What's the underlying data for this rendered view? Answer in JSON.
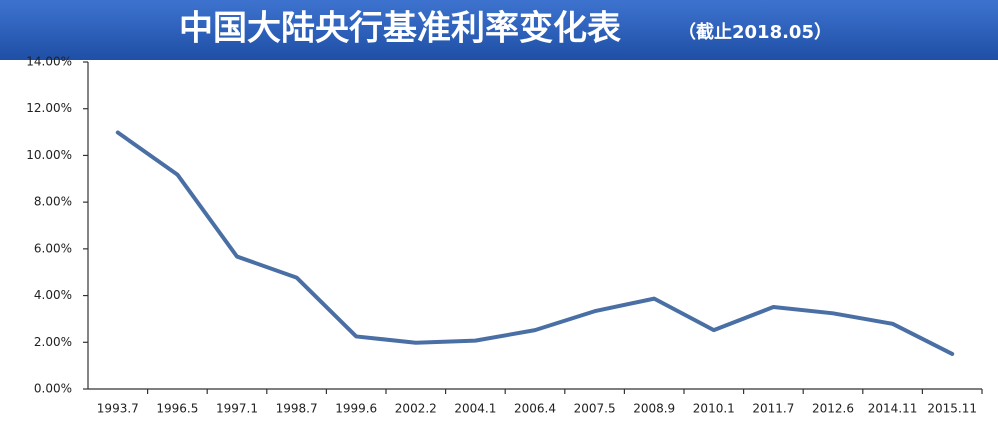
{
  "chart_data": {
    "type": "line",
    "title": "中国大陆央行基准利率变化表",
    "subtitle": "（截止2018.05）",
    "categories": [
      "1993.7",
      "1996.5",
      "1997.1",
      "1998.7",
      "1999.6",
      "2002.2",
      "2004.1",
      "2006.4",
      "2007.5",
      "2008.9",
      "2010.1",
      "2011.7",
      "2012.6",
      "2014.11",
      "2015.11"
    ],
    "values": [
      10.98,
      9.18,
      5.67,
      4.77,
      2.25,
      1.98,
      2.07,
      2.52,
      3.33,
      3.87,
      2.52,
      3.51,
      3.24,
      2.79,
      1.5
    ],
    "color": "#4a6fa5",
    "ylim": [
      0,
      14
    ],
    "yticks": [
      {
        "value": 0,
        "label": "0.00%"
      },
      {
        "value": 2,
        "label": "2.00%"
      },
      {
        "value": 4,
        "label": "4.00%"
      },
      {
        "value": 6,
        "label": "6.00%"
      },
      {
        "value": 8,
        "label": "8.00%"
      },
      {
        "value": 10,
        "label": "10.00%"
      },
      {
        "value": 12,
        "label": "12.00%"
      },
      {
        "value": 14,
        "label": "14.00%"
      }
    ],
    "grid": false
  }
}
